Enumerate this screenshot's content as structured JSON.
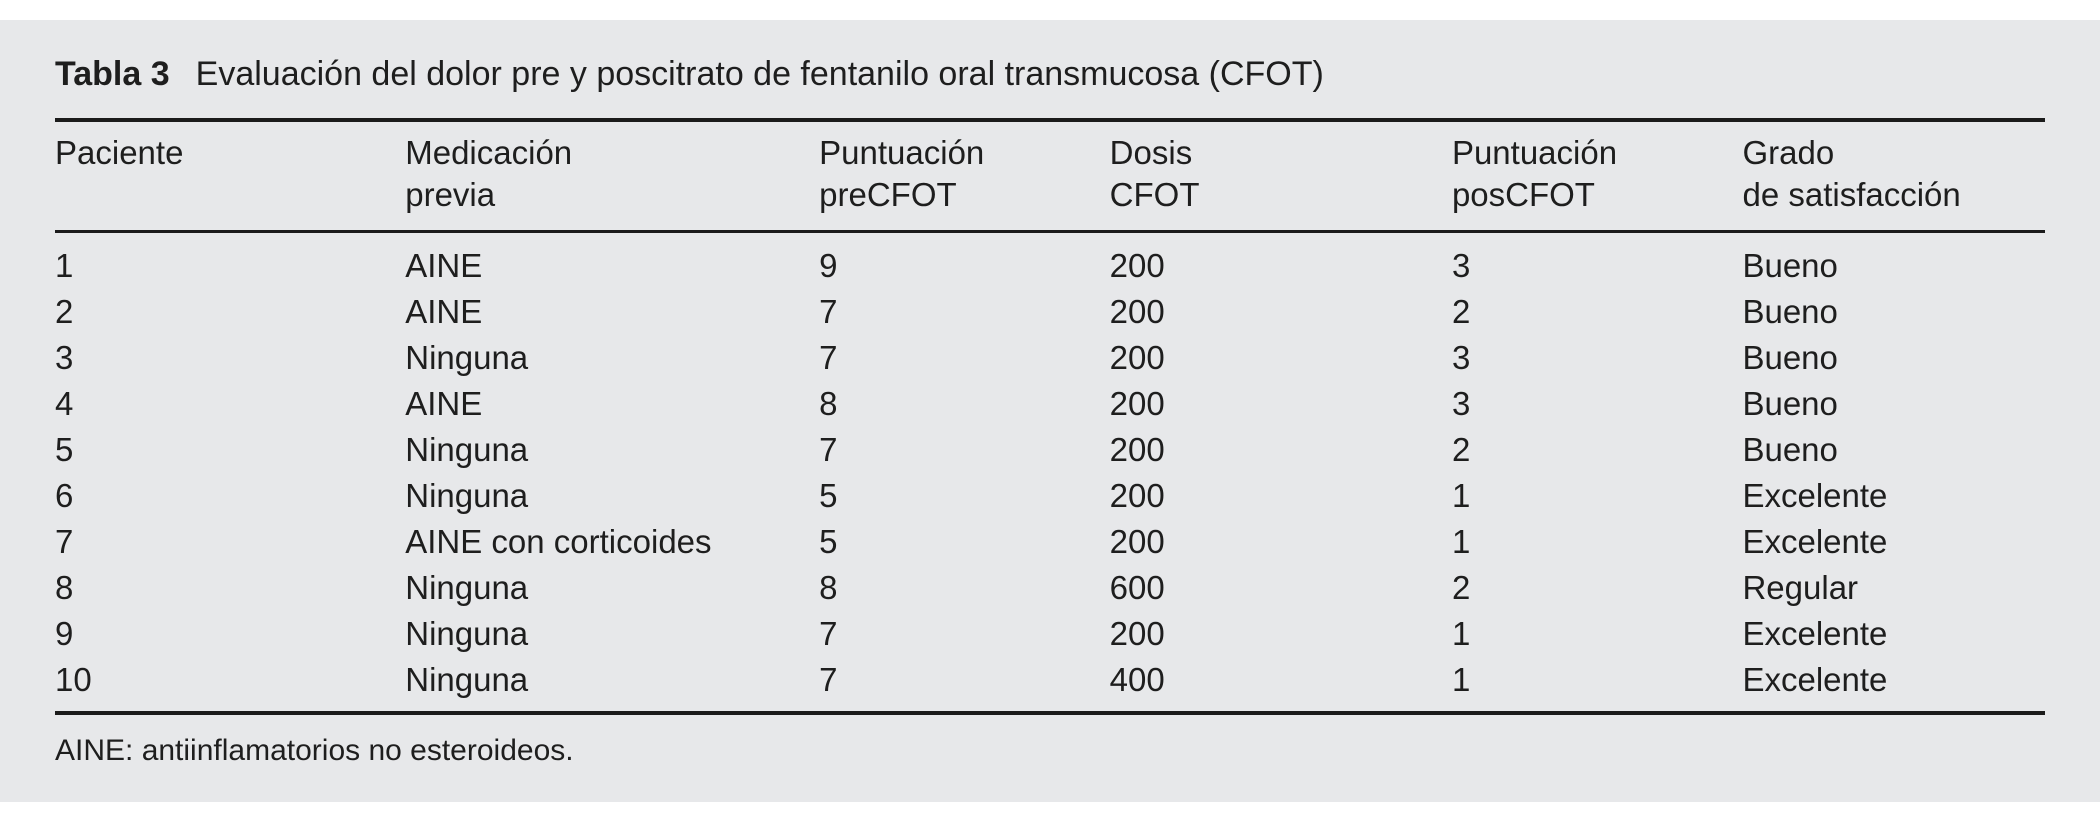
{
  "style": {
    "page_background": "#ffffff",
    "panel_background": "#e7e8ea",
    "text_color": "#1e1e1e",
    "rule_color": "#1b1b1b"
  },
  "caption": {
    "label": "Tabla 3",
    "title": "Evaluación del dolor pre y poscitrato de fentanilo oral transmucosa (CFOT)"
  },
  "table": {
    "columns": [
      {
        "key": "paciente",
        "line1": "Paciente",
        "line2": ""
      },
      {
        "key": "medicacion-previa",
        "line1": "Medicación",
        "line2": "previa"
      },
      {
        "key": "puntuacion-precfot",
        "line1": "Puntuación",
        "line2": "preCFOT"
      },
      {
        "key": "dosis-cfot",
        "line1": "Dosis",
        "line2": "CFOT"
      },
      {
        "key": "puntuacion-poscfot",
        "line1": "Puntuación",
        "line2": "posCFOT"
      },
      {
        "key": "grado-satisfaccion",
        "line1": "Grado",
        "line2": "de satisfacción"
      }
    ],
    "rows": [
      [
        "1",
        "AINE",
        "9",
        "200",
        "3",
        "Bueno"
      ],
      [
        "2",
        "AINE",
        "7",
        "200",
        "2",
        "Bueno"
      ],
      [
        "3",
        "Ninguna",
        "7",
        "200",
        "3",
        "Bueno"
      ],
      [
        "4",
        "AINE",
        "8",
        "200",
        "3",
        "Bueno"
      ],
      [
        "5",
        "Ninguna",
        "7",
        "200",
        "2",
        "Bueno"
      ],
      [
        "6",
        "Ninguna",
        "5",
        "200",
        "1",
        "Excelente"
      ],
      [
        "7",
        "AINE con corticoides",
        "5",
        "200",
        "1",
        "Excelente"
      ],
      [
        "8",
        "Ninguna",
        "8",
        "600",
        "2",
        "Regular"
      ],
      [
        "9",
        "Ninguna",
        "7",
        "200",
        "1",
        "Excelente"
      ],
      [
        "10",
        "Ninguna",
        "7",
        "400",
        "1",
        "Excelente"
      ]
    ]
  },
  "footnote": "AINE: antiinflamatorios no esteroideos.",
  "chart_data": {
    "type": "table",
    "title": "Tabla 3  Evaluación del dolor pre y poscitrato de fentanilo oral transmucosa (CFOT)",
    "columns": [
      "Paciente",
      "Medicación previa",
      "Puntuación preCFOT",
      "Dosis CFOT",
      "Puntuación posCFOT",
      "Grado de satisfacción"
    ],
    "rows": [
      [
        "1",
        "AINE",
        "9",
        "200",
        "3",
        "Bueno"
      ],
      [
        "2",
        "AINE",
        "7",
        "200",
        "2",
        "Bueno"
      ],
      [
        "3",
        "Ninguna",
        "7",
        "200",
        "3",
        "Bueno"
      ],
      [
        "4",
        "AINE",
        "8",
        "200",
        "3",
        "Bueno"
      ],
      [
        "5",
        "Ninguna",
        "7",
        "200",
        "2",
        "Bueno"
      ],
      [
        "6",
        "Ninguna",
        "5",
        "200",
        "1",
        "Excelente"
      ],
      [
        "7",
        "AINE con corticoides",
        "5",
        "200",
        "1",
        "Excelente"
      ],
      [
        "8",
        "Ninguna",
        "8",
        "600",
        "2",
        "Regular"
      ],
      [
        "9",
        "Ninguna",
        "7",
        "200",
        "1",
        "Excelente"
      ],
      [
        "10",
        "Ninguna",
        "7",
        "400",
        "1",
        "Excelente"
      ]
    ],
    "footnote": "AINE: antiinflamatorios no esteroideos."
  }
}
